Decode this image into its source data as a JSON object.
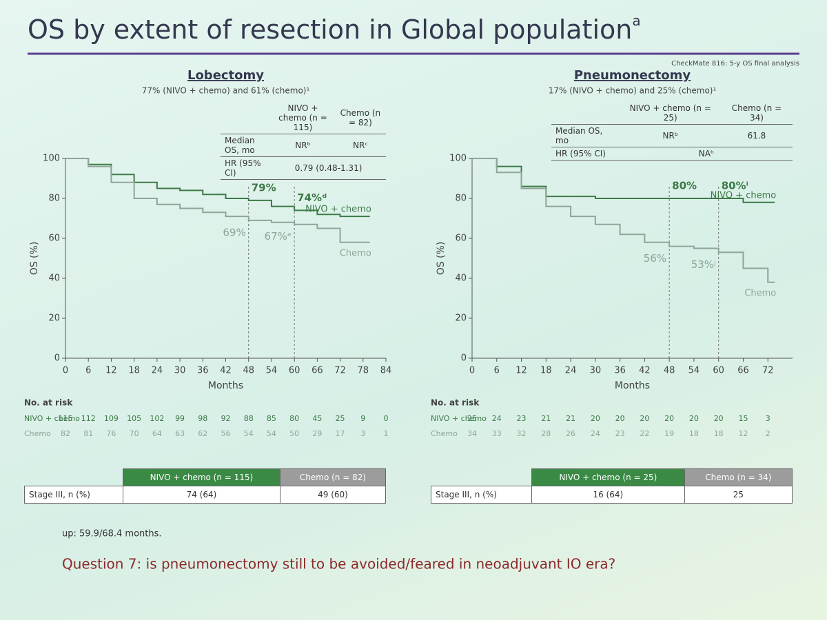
{
  "slide": {
    "title": "OS by extent of resection in Global population",
    "title_note": "a",
    "reference": "CheckMate 816: 5-y OS final analysis",
    "footnote": "up: 59.9/68.4 months.",
    "question": "Question 7: is pneumonectomy still to be avoided/feared in neoadjuvant IO era?"
  },
  "chart_data": [
    {
      "type": "line",
      "step": true,
      "title": "Lobectomy",
      "subtitle": "77% (NIVO + chemo) and 61% (chemo)¹",
      "x_label": "Months",
      "y_label": "OS (%)",
      "xlim": [
        0,
        84
      ],
      "xticks": [
        0,
        6,
        12,
        18,
        24,
        30,
        36,
        42,
        48,
        54,
        60,
        66,
        72,
        78,
        84
      ],
      "ylim": [
        0,
        100
      ],
      "yticks": [
        0,
        20,
        40,
        60,
        80,
        100
      ],
      "landmarks": [
        48,
        60
      ],
      "series": [
        {
          "name": "NIVO + chemo",
          "color": "#3d7a47",
          "x": [
            0,
            6,
            12,
            18,
            24,
            30,
            36,
            42,
            48,
            54,
            60,
            66,
            72,
            78
          ],
          "values": [
            100,
            97,
            92,
            88,
            85,
            84,
            82,
            80,
            79,
            76,
            74,
            72,
            71,
            71
          ],
          "landmark_labels": [
            "79%",
            "74%ᵈ"
          ]
        },
        {
          "name": "Chemo",
          "color": "#8fa596",
          "x": [
            0,
            6,
            12,
            18,
            24,
            30,
            36,
            42,
            48,
            54,
            60,
            66,
            72,
            78
          ],
          "values": [
            100,
            96,
            88,
            80,
            77,
            75,
            73,
            71,
            69,
            68,
            67,
            65,
            58,
            58
          ],
          "landmark_labels": [
            "69%",
            "67%ᵉ"
          ]
        }
      ],
      "summary_table": {
        "columns": [
          "NIVO + chemo (n = 115)",
          "Chemo (n = 82)"
        ],
        "rows": [
          {
            "label": "Median OS, mo",
            "cells": [
              "NRᵇ",
              "NRᶜ"
            ]
          },
          {
            "label": "HR (95% CI)",
            "cells": [
              "0.79 (0.48-1.31)"
            ]
          }
        ]
      },
      "risk_table": {
        "title": "No. at risk",
        "rows": [
          {
            "label": "NIVO + chemo",
            "values": [
              115,
              112,
              109,
              105,
              102,
              99,
              98,
              92,
              88,
              85,
              80,
              45,
              25,
              9,
              0
            ]
          },
          {
            "label": "Chemo",
            "values": [
              82,
              81,
              76,
              70,
              64,
              63,
              62,
              56,
              54,
              54,
              50,
              29,
              17,
              3,
              1
            ]
          }
        ]
      },
      "stage_table": {
        "row_label": "Stage III, n (%)",
        "columns": [
          "NIVO + chemo (n = 115)",
          "Chemo (n = 82)"
        ],
        "cells": [
          "74 (64)",
          "49 (60)"
        ]
      }
    },
    {
      "type": "line",
      "step": true,
      "title": "Pneumonectomy",
      "subtitle": "17% (NIVO + chemo) and 25% (chemo)¹",
      "x_label": "Months",
      "y_label": "OS (%)",
      "xlim": [
        0,
        78
      ],
      "xticks": [
        0,
        6,
        12,
        18,
        24,
        30,
        36,
        42,
        48,
        54,
        60,
        66,
        72
      ],
      "ylim": [
        0,
        100
      ],
      "yticks": [
        0,
        20,
        40,
        60,
        80,
        100
      ],
      "landmarks": [
        48,
        60
      ],
      "series": [
        {
          "name": "NIVO + chemo",
          "color": "#3d7a47",
          "x": [
            0,
            6,
            12,
            18,
            24,
            30,
            36,
            42,
            48,
            54,
            60,
            66,
            72
          ],
          "values": [
            100,
            96,
            86,
            81,
            81,
            80,
            80,
            80,
            80,
            80,
            80,
            78,
            78
          ],
          "landmark_labels": [
            "80%",
            "80%ⁱ"
          ]
        },
        {
          "name": "Chemo",
          "color": "#8fa596",
          "x": [
            0,
            6,
            12,
            18,
            24,
            30,
            36,
            42,
            48,
            54,
            60,
            66,
            72
          ],
          "values": [
            100,
            93,
            85,
            76,
            71,
            67,
            62,
            58,
            56,
            55,
            53,
            45,
            38
          ],
          "landmark_labels": [
            "56%",
            "53%ʲ"
          ]
        }
      ],
      "summary_table": {
        "columns": [
          "NIVO + chemo (n = 25)",
          "Chemo (n = 34)"
        ],
        "rows": [
          {
            "label": "Median OS, mo",
            "cells": [
              "NRᵇ",
              "61.8"
            ]
          },
          {
            "label": "HR (95% CI)",
            "cells": [
              "NAʰ"
            ]
          }
        ]
      },
      "risk_table": {
        "title": "No. at risk",
        "rows": [
          {
            "label": "NIVO + chemo",
            "values": [
              25,
              24,
              23,
              21,
              21,
              20,
              20,
              20,
              20,
              20,
              20,
              15,
              3
            ]
          },
          {
            "label": "Chemo",
            "values": [
              34,
              33,
              32,
              28,
              26,
              24,
              23,
              22,
              19,
              18,
              18,
              12,
              2
            ]
          }
        ]
      },
      "stage_table": {
        "row_label": "Stage III, n (%)",
        "columns": [
          "NIVO + chemo (n = 25)",
          "Chemo (n = 34)"
        ],
        "cells": [
          "16 (64)",
          "25"
        ]
      }
    }
  ]
}
